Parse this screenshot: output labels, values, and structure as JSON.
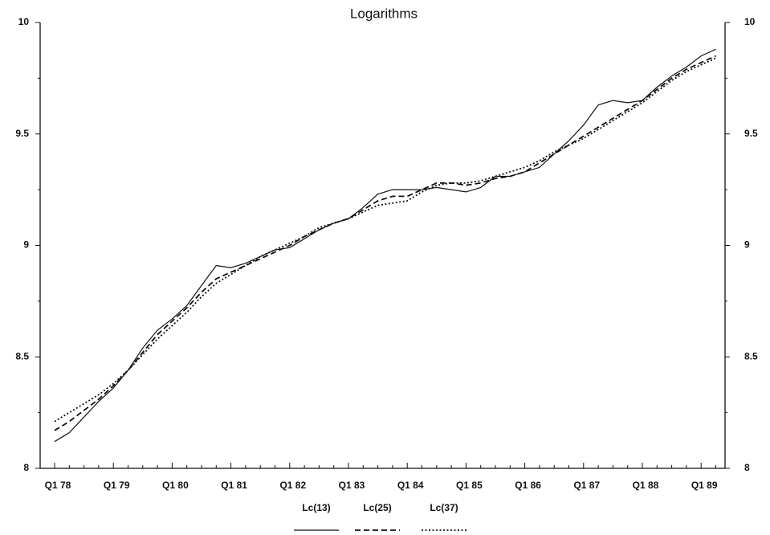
{
  "chart_data": {
    "type": "line",
    "title": "Logarithms",
    "categories": [
      "Q1 78",
      null,
      null,
      null,
      "Q1 79",
      null,
      null,
      null,
      "Q1 80",
      null,
      null,
      null,
      "Q1 81",
      null,
      null,
      null,
      "Q1 82",
      null,
      null,
      null,
      "Q1 83",
      null,
      null,
      null,
      "Q1 84",
      null,
      null,
      null,
      "Q1 85",
      null,
      null,
      null,
      "Q1 86",
      null,
      null,
      null,
      "Q1 87",
      null,
      null,
      null,
      "Q1 88",
      null,
      null,
      null,
      "Q1 89",
      null
    ],
    "series": [
      {
        "name": "Lc(13)",
        "color": "#111111",
        "dash": "solid",
        "values": [
          8.12,
          8.16,
          8.23,
          8.3,
          8.36,
          8.44,
          8.54,
          8.62,
          8.67,
          8.73,
          8.82,
          8.91,
          8.9,
          8.92,
          8.95,
          8.98,
          8.99,
          9.03,
          9.07,
          9.1,
          9.12,
          9.17,
          9.23,
          9.25,
          9.25,
          9.25,
          9.26,
          9.25,
          9.24,
          9.26,
          9.31,
          9.31,
          9.33,
          9.35,
          9.41,
          9.47,
          9.54,
          9.63,
          9.65,
          9.64,
          9.65,
          9.71,
          9.76,
          9.8,
          9.85,
          9.88
        ]
      },
      {
        "name": "Lc(25)",
        "color": "#111111",
        "dash": "dashed",
        "values": [
          8.17,
          8.21,
          8.26,
          8.31,
          8.37,
          8.44,
          8.52,
          8.6,
          8.66,
          8.72,
          8.79,
          8.85,
          8.88,
          8.91,
          8.94,
          8.97,
          9.0,
          9.04,
          9.07,
          9.1,
          9.12,
          9.16,
          9.2,
          9.22,
          9.22,
          9.25,
          9.28,
          9.28,
          9.27,
          9.28,
          9.3,
          9.31,
          9.33,
          9.37,
          9.41,
          9.45,
          9.49,
          9.53,
          9.57,
          9.61,
          9.65,
          9.7,
          9.75,
          9.79,
          9.82,
          9.85
        ]
      },
      {
        "name": "Lc(37)",
        "color": "#111111",
        "dash": "dotted",
        "values": [
          8.21,
          8.25,
          8.29,
          8.33,
          8.38,
          8.44,
          8.51,
          8.58,
          8.64,
          8.7,
          8.77,
          8.83,
          8.87,
          8.91,
          8.95,
          8.98,
          9.01,
          9.04,
          9.08,
          9.1,
          9.12,
          9.15,
          9.18,
          9.19,
          9.2,
          9.24,
          9.27,
          9.28,
          9.28,
          9.29,
          9.31,
          9.33,
          9.35,
          9.38,
          9.42,
          9.45,
          9.48,
          9.52,
          9.56,
          9.6,
          9.64,
          9.69,
          9.74,
          9.78,
          9.81,
          9.84
        ]
      }
    ],
    "ylim": [
      8,
      10
    ],
    "yticks": [
      8,
      8.5,
      9,
      9.5,
      10
    ],
    "legend": "bottom"
  }
}
